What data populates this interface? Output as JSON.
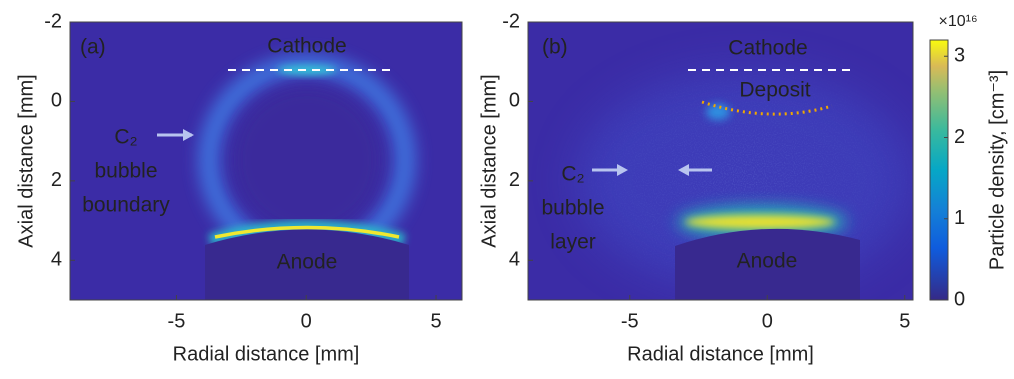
{
  "chart_data": [
    {
      "type": "heatmap",
      "title": "(a)",
      "xlabel": "Radial distance [mm]",
      "ylabel": "Axial distance [mm]",
      "xlim": [
        -9.1,
        6
      ],
      "ylim": [
        -2,
        5
      ],
      "xticks": [
        -5,
        0,
        5
      ],
      "yticks": [
        -2,
        0,
        2,
        4
      ],
      "annotations": [
        {
          "lines": [
            "Cathode"
          ],
          "color": "#ffffff"
        },
        {
          "lines": [
            "C₂",
            "bubble",
            "boundary"
          ],
          "color": "#ffffff"
        },
        {
          "lines": [
            "Anode"
          ],
          "color": "#e0152b"
        }
      ]
    },
    {
      "type": "heatmap",
      "title": "(b)",
      "xlabel": "Radial distance [mm]",
      "ylabel": "Axial distance [mm]",
      "xlim": [
        -8.7,
        5.3
      ],
      "ylim": [
        -2,
        5
      ],
      "xticks": [
        -5,
        0,
        5
      ],
      "yticks": [
        -2,
        0,
        2,
        4
      ],
      "annotations": [
        {
          "lines": [
            "Cathode"
          ],
          "color": "#ffffff"
        },
        {
          "lines": [
            "Deposit"
          ],
          "color": "#f0a800"
        },
        {
          "lines": [
            "C₂",
            "bubble",
            "layer"
          ],
          "color": "#ffffff"
        },
        {
          "lines": [
            "Anode"
          ],
          "color": "#e0152b"
        }
      ],
      "colorbar": {
        "label": "Particle density, [cm⁻³]",
        "multiplier": "×10¹⁶",
        "lim": [
          0,
          3.2
        ],
        "ticks": [
          0,
          1,
          2,
          3
        ]
      }
    }
  ]
}
